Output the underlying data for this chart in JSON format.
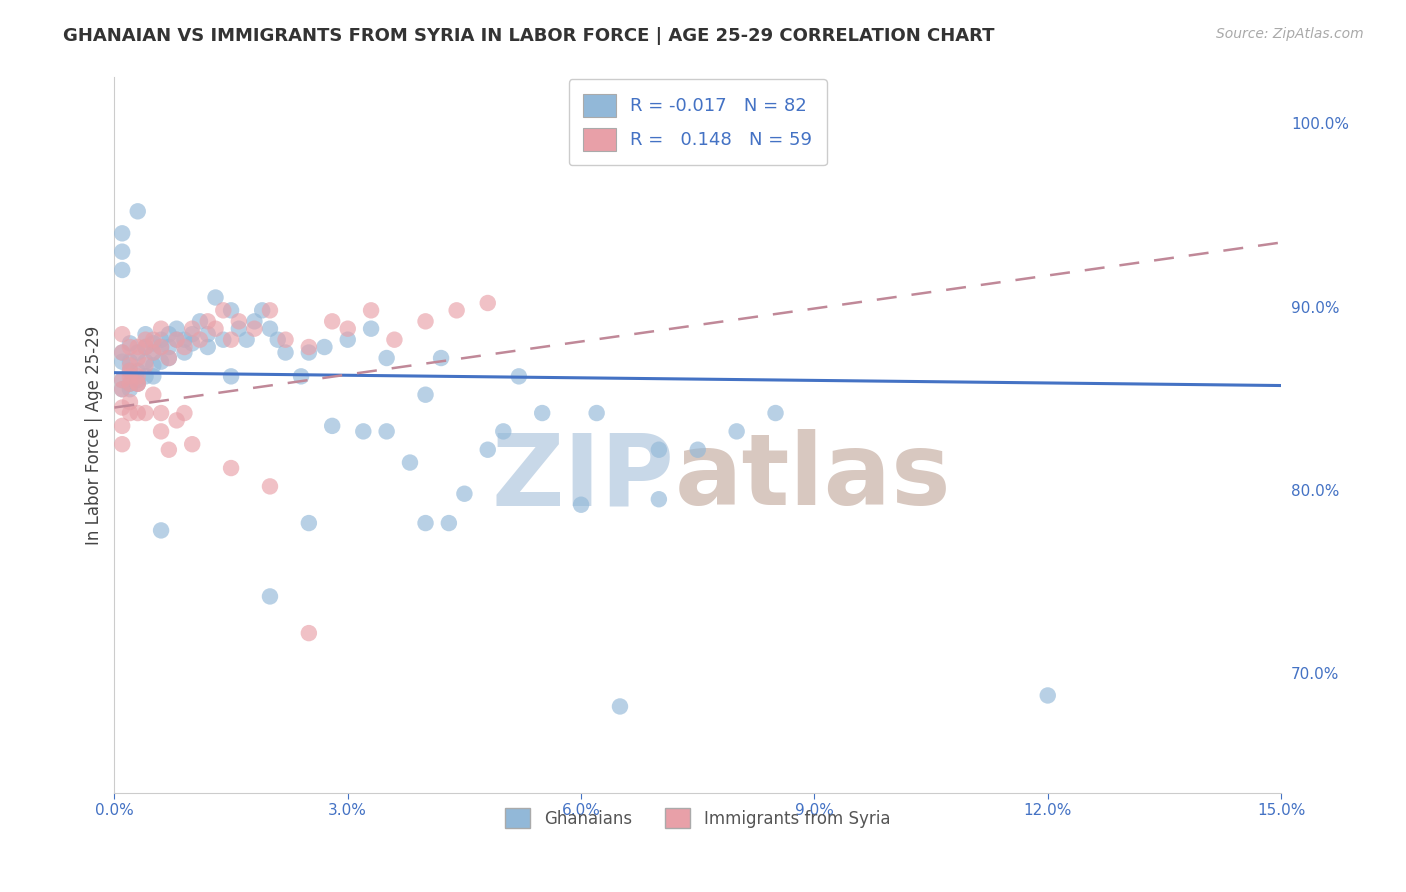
{
  "title": "GHANAIAN VS IMMIGRANTS FROM SYRIA IN LABOR FORCE | AGE 25-29 CORRELATION CHART",
  "source": "Source: ZipAtlas.com",
  "ylabel": "In Labor Force | Age 25-29",
  "xlim": [
    0.0,
    0.15
  ],
  "ylim": [
    0.635,
    1.025
  ],
  "blue_color": "#92b8d8",
  "pink_color": "#e8a0a8",
  "blue_line_color": "#4472c4",
  "pink_line_color": "#c0506a",
  "pink_line_dashed_color": "#c08898",
  "R_blue": -0.017,
  "N_blue": 82,
  "R_pink": 0.148,
  "N_pink": 59,
  "legend_labels": [
    "Ghanaians",
    "Immigrants from Syria"
  ],
  "watermark_zip": "ZIP",
  "watermark_atlas": "atlas",
  "blue_trend_y0": 0.864,
  "blue_trend_y1": 0.857,
  "pink_trend_y0": 0.845,
  "pink_trend_y1": 0.935,
  "blue_x": [
    0.001,
    0.001,
    0.001,
    0.001,
    0.002,
    0.002,
    0.002,
    0.002,
    0.002,
    0.003,
    0.003,
    0.003,
    0.003,
    0.004,
    0.004,
    0.004,
    0.004,
    0.005,
    0.005,
    0.005,
    0.005,
    0.006,
    0.006,
    0.006,
    0.007,
    0.007,
    0.007,
    0.008,
    0.008,
    0.009,
    0.009,
    0.01,
    0.01,
    0.011,
    0.012,
    0.012,
    0.013,
    0.014,
    0.015,
    0.016,
    0.017,
    0.018,
    0.019,
    0.02,
    0.021,
    0.022,
    0.024,
    0.025,
    0.027,
    0.03,
    0.033,
    0.035,
    0.038,
    0.04,
    0.043,
    0.048,
    0.05,
    0.055,
    0.06,
    0.065,
    0.07,
    0.075,
    0.08,
    0.085,
    0.042,
    0.052,
    0.062,
    0.001,
    0.001,
    0.001,
    0.028,
    0.032,
    0.12,
    0.07,
    0.02,
    0.04,
    0.045,
    0.025,
    0.035,
    0.015,
    0.006,
    0.003
  ],
  "blue_y": [
    0.87,
    0.855,
    0.86,
    0.875,
    0.88,
    0.865,
    0.858,
    0.87,
    0.855,
    0.875,
    0.865,
    0.86,
    0.858,
    0.885,
    0.878,
    0.87,
    0.862,
    0.88,
    0.875,
    0.868,
    0.862,
    0.882,
    0.878,
    0.87,
    0.885,
    0.878,
    0.872,
    0.882,
    0.888,
    0.882,
    0.875,
    0.88,
    0.885,
    0.892,
    0.885,
    0.878,
    0.905,
    0.882,
    0.898,
    0.888,
    0.882,
    0.892,
    0.898,
    0.888,
    0.882,
    0.875,
    0.862,
    0.875,
    0.878,
    0.882,
    0.888,
    0.872,
    0.815,
    0.852,
    0.782,
    0.822,
    0.832,
    0.842,
    0.792,
    0.682,
    0.795,
    0.822,
    0.832,
    0.842,
    0.872,
    0.862,
    0.842,
    0.94,
    0.93,
    0.92,
    0.835,
    0.832,
    0.688,
    0.822,
    0.742,
    0.782,
    0.798,
    0.782,
    0.832,
    0.862,
    0.778,
    0.952
  ],
  "pink_x": [
    0.001,
    0.001,
    0.001,
    0.001,
    0.002,
    0.002,
    0.002,
    0.002,
    0.003,
    0.003,
    0.003,
    0.003,
    0.004,
    0.004,
    0.004,
    0.005,
    0.005,
    0.006,
    0.006,
    0.007,
    0.008,
    0.009,
    0.01,
    0.011,
    0.012,
    0.013,
    0.014,
    0.015,
    0.016,
    0.018,
    0.02,
    0.022,
    0.025,
    0.028,
    0.03,
    0.033,
    0.036,
    0.04,
    0.044,
    0.048,
    0.001,
    0.001,
    0.001,
    0.002,
    0.002,
    0.003,
    0.004,
    0.005,
    0.006,
    0.006,
    0.007,
    0.008,
    0.009,
    0.01,
    0.015,
    0.02,
    0.025,
    0.002,
    0.003
  ],
  "pink_y": [
    0.875,
    0.885,
    0.855,
    0.86,
    0.878,
    0.868,
    0.858,
    0.865,
    0.878,
    0.872,
    0.862,
    0.858,
    0.882,
    0.878,
    0.868,
    0.875,
    0.882,
    0.878,
    0.888,
    0.872,
    0.882,
    0.878,
    0.888,
    0.882,
    0.892,
    0.888,
    0.898,
    0.882,
    0.892,
    0.888,
    0.898,
    0.882,
    0.878,
    0.892,
    0.888,
    0.898,
    0.882,
    0.892,
    0.898,
    0.902,
    0.825,
    0.835,
    0.845,
    0.842,
    0.848,
    0.842,
    0.842,
    0.852,
    0.842,
    0.832,
    0.822,
    0.838,
    0.842,
    0.825,
    0.812,
    0.802,
    0.722,
    0.862,
    0.858
  ]
}
